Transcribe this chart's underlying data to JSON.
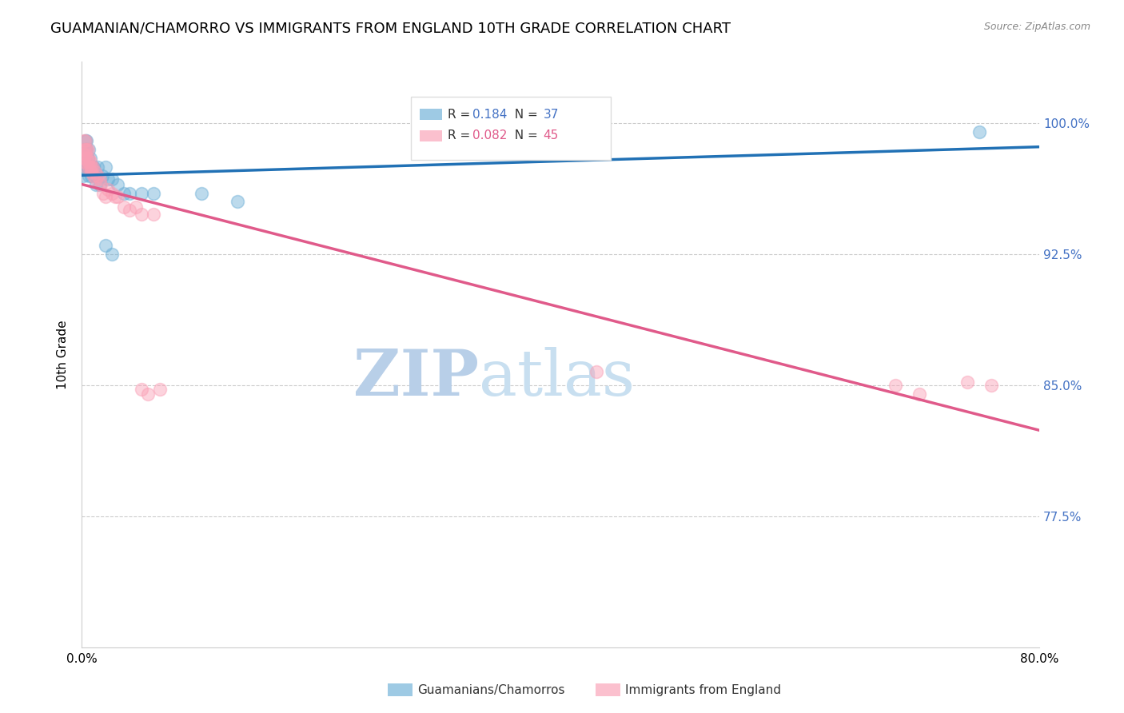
{
  "title": "GUAMANIAN/CHAMORRO VS IMMIGRANTS FROM ENGLAND 10TH GRADE CORRELATION CHART",
  "source": "Source: ZipAtlas.com",
  "ylabel": "10th Grade",
  "xlim": [
    0.0,
    0.8
  ],
  "ylim": [
    0.7,
    1.035
  ],
  "xticks": [
    0.0,
    0.1,
    0.2,
    0.3,
    0.4,
    0.5,
    0.6,
    0.7,
    0.8
  ],
  "xticklabels": [
    "0.0%",
    "",
    "",
    "",
    "",
    "",
    "",
    "",
    "80.0%"
  ],
  "yticks": [
    0.775,
    0.85,
    0.925,
    1.0
  ],
  "yticklabels": [
    "77.5%",
    "85.0%",
    "92.5%",
    "100.0%"
  ],
  "blue_R": 0.184,
  "blue_N": 37,
  "pink_R": 0.082,
  "pink_N": 45,
  "blue_color": "#6baed6",
  "pink_color": "#fa9fb5",
  "blue_line_color": "#2171b5",
  "pink_line_color": "#e05a8a",
  "blue_label": "Guamanians/Chamorros",
  "pink_label": "Immigrants from England",
  "blue_scatter_x": [
    0.001,
    0.001,
    0.002,
    0.002,
    0.002,
    0.003,
    0.003,
    0.003,
    0.004,
    0.004,
    0.005,
    0.005,
    0.006,
    0.006,
    0.007,
    0.007,
    0.008,
    0.009,
    0.01,
    0.011,
    0.012,
    0.013,
    0.015,
    0.017,
    0.02,
    0.022,
    0.025,
    0.03,
    0.035,
    0.04,
    0.05,
    0.06,
    0.1,
    0.13,
    0.02,
    0.025,
    0.75
  ],
  "blue_scatter_y": [
    0.97,
    0.975,
    0.975,
    0.98,
    0.985,
    0.98,
    0.985,
    0.99,
    0.985,
    0.99,
    0.975,
    0.98,
    0.985,
    0.97,
    0.975,
    0.98,
    0.97,
    0.975,
    0.975,
    0.97,
    0.965,
    0.975,
    0.965,
    0.97,
    0.975,
    0.968,
    0.968,
    0.965,
    0.96,
    0.96,
    0.96,
    0.96,
    0.96,
    0.955,
    0.93,
    0.925,
    0.995
  ],
  "pink_scatter_x": [
    0.001,
    0.001,
    0.002,
    0.002,
    0.002,
    0.003,
    0.003,
    0.003,
    0.004,
    0.004,
    0.004,
    0.005,
    0.005,
    0.006,
    0.006,
    0.007,
    0.007,
    0.008,
    0.008,
    0.009,
    0.01,
    0.011,
    0.012,
    0.013,
    0.015,
    0.016,
    0.018,
    0.02,
    0.022,
    0.025,
    0.028,
    0.03,
    0.035,
    0.04,
    0.045,
    0.05,
    0.06,
    0.05,
    0.055,
    0.065,
    0.43,
    0.68,
    0.7,
    0.74,
    0.76
  ],
  "pink_scatter_y": [
    0.978,
    0.982,
    0.98,
    0.985,
    0.99,
    0.982,
    0.985,
    0.99,
    0.98,
    0.985,
    0.975,
    0.978,
    0.985,
    0.98,
    0.975,
    0.975,
    0.978,
    0.972,
    0.975,
    0.975,
    0.97,
    0.972,
    0.968,
    0.97,
    0.968,
    0.965,
    0.96,
    0.958,
    0.962,
    0.96,
    0.958,
    0.958,
    0.952,
    0.95,
    0.952,
    0.948,
    0.948,
    0.848,
    0.845,
    0.848,
    0.858,
    0.85,
    0.845,
    0.852,
    0.85
  ],
  "background_color": "#ffffff",
  "grid_color": "#cccccc",
  "title_fontsize": 13,
  "axis_label_fontsize": 11,
  "tick_fontsize": 11,
  "right_tick_color": "#4472c4",
  "watermark_zip_color": "#b8cfe8",
  "watermark_atlas_color": "#c8dff0"
}
